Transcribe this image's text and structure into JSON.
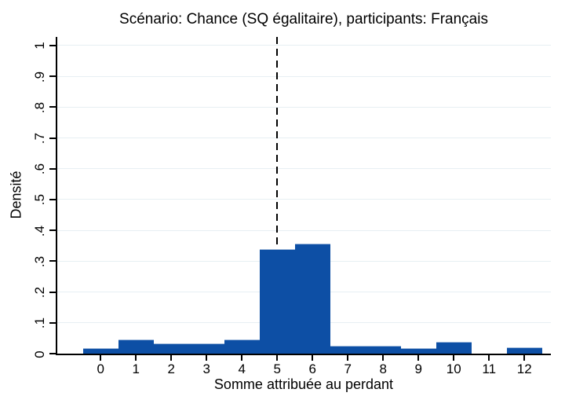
{
  "chart_data": {
    "type": "bar",
    "subtype": "histogram",
    "title": "Scénario: Chance (SQ égalitaire), participants: Français",
    "xlabel": "Somme attribuée au perdant",
    "ylabel": "Densité",
    "categories": [
      0,
      1,
      2,
      3,
      4,
      5,
      6,
      7,
      8,
      9,
      10,
      11,
      12
    ],
    "values": [
      0.018,
      0.045,
      0.034,
      0.034,
      0.045,
      0.34,
      0.358,
      0.025,
      0.025,
      0.018,
      0.037,
      0,
      0.02
    ],
    "bin_width": 1,
    "x_tick_labels": [
      "0",
      "1",
      "2",
      "3",
      "4",
      "5",
      "6",
      "7",
      "8",
      "9",
      "10",
      "11",
      "12"
    ],
    "y_tick_values": [
      0,
      0.1,
      0.2,
      0.3,
      0.4,
      0.5,
      0.6,
      0.7,
      0.8,
      0.9,
      1
    ],
    "y_tick_labels": [
      "0",
      ".1",
      ".2",
      ".3",
      ".4",
      ".5",
      ".6",
      ".7",
      ".8",
      ".9",
      "1"
    ],
    "xlim": [
      -1.25,
      12.75
    ],
    "ylim": [
      0,
      1.028
    ],
    "grid": true,
    "legend": "none",
    "reference_line_x": 5,
    "reference_line_style": "dashed",
    "bar_color": "#0d4fa5",
    "bar_edge_color": "#9cb7d9",
    "grid_color": "#e7eff3",
    "axis_color": "#000000",
    "reference_line_color": "#000000"
  }
}
